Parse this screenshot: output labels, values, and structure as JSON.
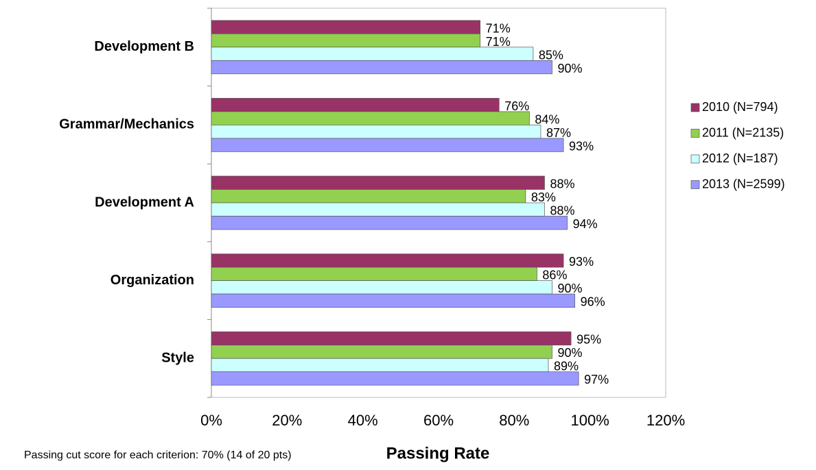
{
  "chart_data": {
    "type": "barh",
    "categories": [
      "Development B",
      "Grammar/Mechanics",
      "Development A",
      "Organization",
      "Style"
    ],
    "series": [
      {
        "name": "2010 (N=794)",
        "color": "#993366",
        "values": [
          71,
          76,
          88,
          93,
          95
        ],
        "value_labels": [
          "71%",
          "76%",
          "88%",
          "93%",
          "95%"
        ]
      },
      {
        "name": "2011 (N=2135)",
        "color": "#92d050",
        "values": [
          71,
          84,
          83,
          86,
          90
        ],
        "value_labels": [
          "71%",
          "84%",
          "83%",
          "86%",
          "90%"
        ]
      },
      {
        "name": "2012 (N=187)",
        "color": "#ccffff",
        "values": [
          85,
          87,
          88,
          90,
          89
        ],
        "value_labels": [
          "85%",
          "87%",
          "88%",
          "90%",
          "89%"
        ]
      },
      {
        "name": "2013 (N=2599)",
        "color": "#9999ff",
        "values": [
          90,
          93,
          94,
          96,
          97
        ],
        "value_labels": [
          "90%",
          "93%",
          "94%",
          "96%",
          "97%"
        ]
      }
    ],
    "xlabel": "Passing Rate",
    "note": "Passing cut score for each criterion: 70% (14 of 20 pts)",
    "xlim": [
      0,
      120
    ],
    "xticks": [
      {
        "value": 0,
        "label": "0%"
      },
      {
        "value": 20,
        "label": "20%"
      },
      {
        "value": 40,
        "label": "40%"
      },
      {
        "value": 60,
        "label": "60%"
      },
      {
        "value": 80,
        "label": "80%"
      },
      {
        "value": 100,
        "label": "100%"
      },
      {
        "value": 120,
        "label": "120%"
      }
    ],
    "legend": "right"
  }
}
